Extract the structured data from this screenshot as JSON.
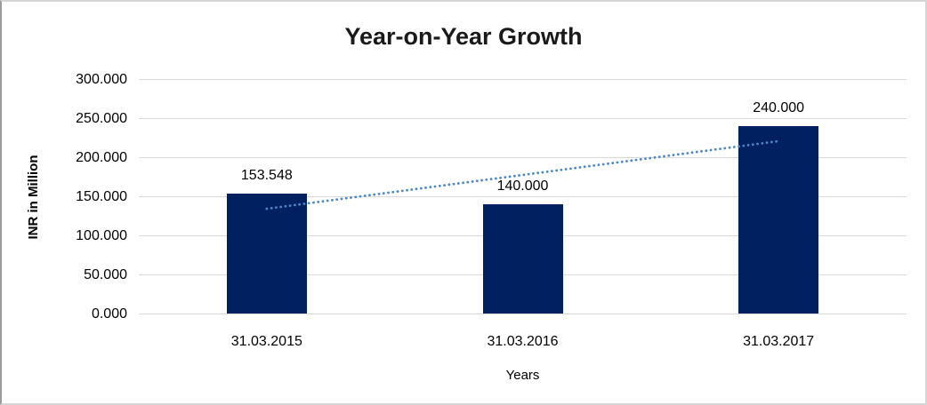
{
  "chart_data": {
    "type": "bar",
    "title": "Year-on-Year Growth",
    "xlabel": "Years",
    "ylabel": "INR in Million",
    "categories": [
      "31.03.2015",
      "31.03.2016",
      "31.03.2017"
    ],
    "values": [
      153.548,
      140.0,
      240.0
    ],
    "data_labels": [
      "153.548",
      "140.000",
      "240.000"
    ],
    "ylim": [
      0,
      300
    ],
    "ytick_step": 50,
    "ytick_labels": [
      "300.000",
      "250.000",
      "200.000",
      "150.000",
      "100.000",
      "50.000",
      "0.000"
    ],
    "grid": true,
    "legend": "none",
    "trendline": {
      "type": "linear",
      "style": "dotted",
      "start_value": 134.6,
      "end_value": 221.1
    },
    "colors": {
      "bar": "#002060",
      "trendline": "#4a86c8",
      "gridline": "#d9d9d9",
      "text": "#000000",
      "title": "#1a1a1a",
      "background": "#ffffff"
    }
  }
}
